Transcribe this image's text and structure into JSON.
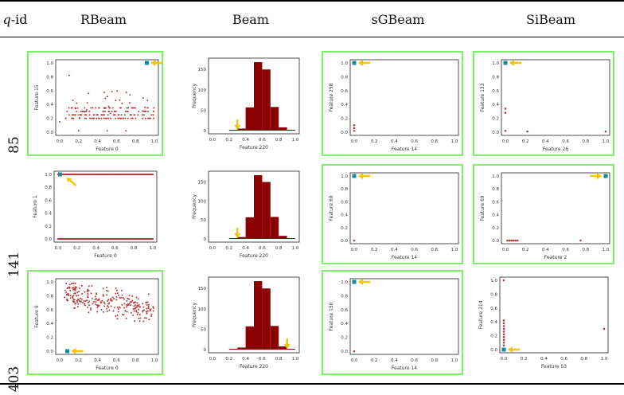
{
  "header": {
    "qid": "q",
    "qid_suffix": "-id",
    "cols": [
      "RBeam",
      "Beam",
      "sGBeam",
      "SiBeam"
    ]
  },
  "rows": [
    "85",
    "141",
    "403"
  ],
  "tick_labels": {
    "unit": [
      "0.0",
      "0.2",
      "0.4",
      "0.6",
      "0.8",
      "1.0"
    ],
    "beam_x": [
      "0.0",
      "0.2",
      "0.4",
      "0.6",
      "0.8",
      "1.0"
    ],
    "beam_y": [
      "0",
      "50",
      "100",
      "150"
    ]
  },
  "chart_data": [
    {
      "id": "85-RBeam",
      "type": "scatter",
      "xlabel": "Feature 0",
      "ylabel": "Feature 15",
      "xlim": [
        0,
        1
      ],
      "ylim": [
        0,
        1
      ],
      "highlight": {
        "x": 0.92,
        "y": 1.0,
        "color": "#1a8a9a"
      },
      "arrow": "left-of-highlight"
    },
    {
      "id": "85-Beam",
      "type": "bar",
      "xlabel": "Feature 220",
      "ylabel": "Frequency",
      "xlim": [
        0,
        1
      ],
      "ylim": [
        0,
        170
      ],
      "bins": [
        0.2,
        0.3,
        0.4,
        0.5,
        0.6,
        0.7,
        0.8,
        0.9
      ],
      "values": [
        2,
        5,
        57,
        168,
        150,
        58,
        8,
        2
      ],
      "arrow_x": 0.3
    },
    {
      "id": "85-sGBeam",
      "type": "scatter",
      "xlabel": "Feature 14",
      "ylabel": "Feature 258",
      "xlim": [
        0,
        1
      ],
      "ylim": [
        0,
        1
      ],
      "points": [
        [
          0,
          0.1
        ],
        [
          0,
          0.06
        ],
        [
          0,
          0.02
        ]
      ],
      "highlight": {
        "x": 0,
        "y": 1.0,
        "color": "#1a8a9a"
      }
    },
    {
      "id": "85-SiBeam",
      "type": "scatter",
      "xlabel": "Feature 26",
      "ylabel": "Feature 133",
      "xlim": [
        0,
        1
      ],
      "ylim": [
        0,
        1
      ],
      "points": [
        [
          0,
          0.34
        ],
        [
          0,
          0.28
        ],
        [
          0,
          0.02
        ],
        [
          0.22,
          0.01
        ],
        [
          1,
          0.01
        ]
      ],
      "highlight": {
        "x": 0,
        "y": 1.0,
        "color": "#1a8a9a"
      }
    },
    {
      "id": "141-RBeam",
      "type": "scatter",
      "xlabel": "Feature 0",
      "ylabel": "Feature 1",
      "xlim": [
        0,
        1
      ],
      "ylim": [
        0,
        1
      ],
      "binary": true,
      "highlight": {
        "x": 0.02,
        "y": 1.0,
        "color": "#1a8a9a"
      }
    },
    {
      "id": "141-Beam",
      "type": "bar",
      "xlabel": "Feature 220",
      "ylabel": "Frequency",
      "xlim": [
        0,
        1
      ],
      "ylim": [
        0,
        170
      ],
      "bins": [
        0.2,
        0.3,
        0.4,
        0.5,
        0.6,
        0.7,
        0.8,
        0.9
      ],
      "values": [
        2,
        5,
        57,
        168,
        150,
        58,
        8,
        2
      ],
      "arrow_x": 0.3
    },
    {
      "id": "141-sGBeam",
      "type": "scatter",
      "xlabel": "Feature 14",
      "ylabel": "Feature 69",
      "xlim": [
        0,
        1
      ],
      "ylim": [
        0,
        1
      ],
      "points": [
        [
          0,
          0.0
        ]
      ],
      "highlight": {
        "x": 0,
        "y": 1.0,
        "color": "#1a8a9a"
      }
    },
    {
      "id": "141-SiBeam",
      "type": "scatter",
      "xlabel": "Feature 2",
      "ylabel": "Feature 69",
      "xlim": [
        0,
        1
      ],
      "ylim": [
        0,
        1
      ],
      "points": [
        [
          0.02,
          0
        ],
        [
          0.04,
          0
        ],
        [
          0.06,
          0
        ],
        [
          0.08,
          0
        ],
        [
          0.1,
          0
        ],
        [
          0.12,
          0
        ],
        [
          0.75,
          0
        ]
      ],
      "highlight": {
        "x": 1.0,
        "y": 1.0,
        "color": "#1a8a9a"
      }
    },
    {
      "id": "403-RBeam",
      "type": "scatter",
      "xlabel": "Feature 0",
      "ylabel": "Feature 9",
      "xlim": [
        0,
        1
      ],
      "ylim": [
        0,
        1
      ],
      "cloud": true,
      "highlight": {
        "x": 0.08,
        "y": 0.0,
        "color": "#1a8a9a"
      }
    },
    {
      "id": "403-Beam",
      "type": "bar",
      "xlabel": "Feature 220",
      "ylabel": "Frequency",
      "xlim": [
        0,
        1
      ],
      "ylim": [
        0,
        170
      ],
      "bins": [
        0.2,
        0.3,
        0.4,
        0.5,
        0.6,
        0.7,
        0.8,
        0.9
      ],
      "values": [
        2,
        5,
        57,
        168,
        150,
        58,
        8,
        2
      ],
      "arrow_x": 0.9
    },
    {
      "id": "403-sGBeam",
      "type": "scatter",
      "xlabel": "Feature 14",
      "ylabel": "Feature 150",
      "xlim": [
        0,
        1
      ],
      "ylim": [
        0,
        1
      ],
      "points": [
        [
          0,
          0.0
        ]
      ],
      "highlight": {
        "x": 0,
        "y": 1.0,
        "color": "#1a8a9a"
      }
    },
    {
      "id": "403-SiBeam",
      "type": "scatter",
      "xlabel": "Feature 53",
      "ylabel": "Feature 214",
      "xlim": [
        0,
        1
      ],
      "ylim": [
        0,
        1
      ],
      "points": [
        [
          0,
          1.0
        ],
        [
          1,
          0.3
        ],
        [
          0,
          0.42
        ],
        [
          0,
          0.38
        ],
        [
          0,
          0.34
        ],
        [
          0,
          0.3
        ],
        [
          0,
          0.26
        ],
        [
          0,
          0.22
        ],
        [
          0,
          0.18
        ],
        [
          0,
          0.14
        ],
        [
          0,
          0.1
        ],
        [
          0,
          0.06
        ]
      ],
      "highlight": {
        "x": 0,
        "y": 0.0,
        "color": "#1a8a9a"
      }
    }
  ],
  "colors": {
    "point": "#b23b3b",
    "bar": "#8b0000",
    "arrow": "#f5c400",
    "frame": "#7df06a",
    "highlight": "#1a8a9a"
  }
}
